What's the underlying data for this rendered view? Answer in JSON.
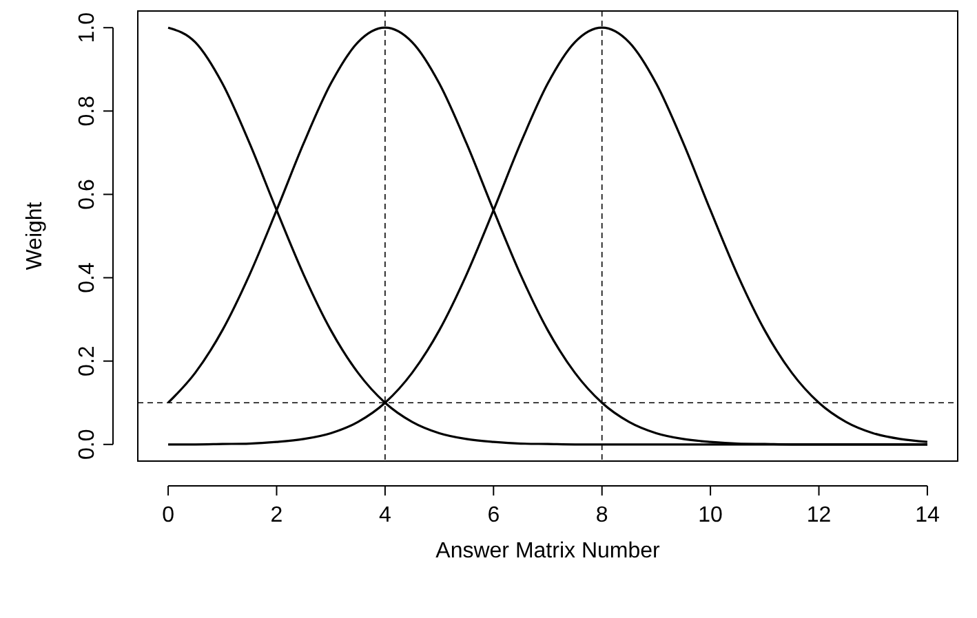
{
  "chart_data": {
    "type": "line",
    "xlabel": "Answer Matrix Number",
    "ylabel": "Weight",
    "x": [
      0,
      0.5,
      1,
      1.5,
      2,
      2.5,
      3,
      3.5,
      4,
      4.5,
      5,
      5.5,
      6,
      6.5,
      7,
      7.5,
      8,
      8.5,
      9,
      9.5,
      10,
      10.5,
      11,
      11.5,
      12,
      12.5,
      13,
      13.5,
      14
    ],
    "series": [
      {
        "color": "#000000",
        "values": [
          1,
          0.965,
          0.866,
          0.723,
          0.562,
          0.407,
          0.274,
          0.172,
          0.1,
          0.054,
          0.027,
          0.013,
          0.006,
          0.002,
          0.001,
          0,
          0,
          0,
          0,
          0,
          0,
          0,
          0,
          0,
          0,
          0,
          0,
          0,
          0
        ]
      },
      {
        "color": "#000000",
        "values": [
          0.1,
          0.172,
          0.274,
          0.407,
          0.562,
          0.723,
          0.866,
          0.965,
          1,
          0.965,
          0.866,
          0.723,
          0.562,
          0.407,
          0.274,
          0.172,
          0.1,
          0.054,
          0.027,
          0.013,
          0.006,
          0.002,
          0.001,
          0,
          0,
          0,
          0,
          0,
          0
        ]
      },
      {
        "color": "#000000",
        "values": [
          0,
          0,
          0.001,
          0.002,
          0.006,
          0.013,
          0.027,
          0.054,
          0.1,
          0.172,
          0.274,
          0.407,
          0.562,
          0.723,
          0.866,
          0.965,
          1,
          0.965,
          0.866,
          0.723,
          0.562,
          0.407,
          0.274,
          0.172,
          0.1,
          0.054,
          0.027,
          0.013,
          0.006
        ]
      }
    ],
    "ref_lines": [
      {
        "axis": "x",
        "value": 4,
        "line_style": "dashed"
      },
      {
        "axis": "x",
        "value": 8,
        "line_style": "dashed"
      },
      {
        "axis": "y",
        "value": 0.1,
        "line_style": "dashed"
      }
    ],
    "xlim": [
      -0.56,
      14.56
    ],
    "ylim": [
      -0.04,
      1.04
    ],
    "xticks": [
      0,
      2,
      4,
      6,
      8,
      10,
      12,
      14
    ],
    "yticks": [
      {
        "value": 0,
        "label": "0.0"
      },
      {
        "value": 0.2,
        "label": "0.2"
      },
      {
        "value": 0.4,
        "label": "0.4"
      },
      {
        "value": 0.6,
        "label": "0.6"
      },
      {
        "value": 0.8,
        "label": "0.8"
      },
      {
        "value": 1,
        "label": "1.0"
      }
    ],
    "grid": false,
    "marker": "none",
    "line_style": "solid"
  }
}
